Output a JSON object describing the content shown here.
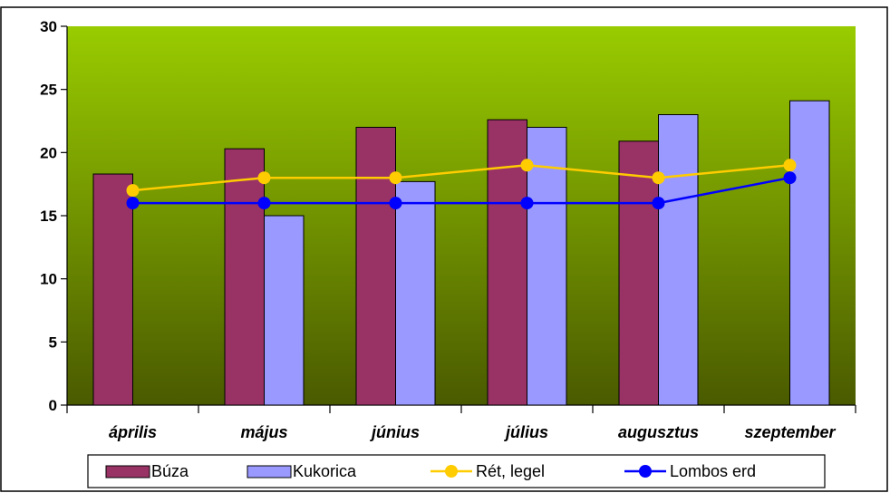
{
  "chart_data": {
    "type": "bar",
    "title": "",
    "xlabel": "",
    "ylabel": "",
    "ylim": [
      0,
      30
    ],
    "y_ticks": [
      "0",
      "5",
      "10",
      "15",
      "20",
      "25",
      "30"
    ],
    "grid": false,
    "legend_position": "bottom",
    "categories": [
      "április",
      "május",
      "június",
      "július",
      "augusztus",
      "szeptember"
    ],
    "series": [
      {
        "name": "Búza",
        "kind": "bar",
        "color": "#993366",
        "values": [
          18.3,
          20.3,
          22.0,
          22.6,
          20.9,
          null
        ]
      },
      {
        "name": "Kukorica",
        "kind": "bar",
        "color": "#9999ff",
        "values": [
          null,
          15.0,
          17.7,
          22.0,
          23.0,
          24.1
        ]
      },
      {
        "name": "Rét, legel",
        "kind": "line",
        "color": "#ffcc00",
        "values": [
          17,
          18,
          18,
          19,
          18,
          19
        ]
      },
      {
        "name": "Lombos erd",
        "kind": "line",
        "color": "#0000ff",
        "values": [
          16,
          16,
          16,
          16,
          16,
          18
        ]
      }
    ],
    "plot_background": {
      "top_color": "#99cc00",
      "bottom_color": "#4a5a00"
    }
  }
}
